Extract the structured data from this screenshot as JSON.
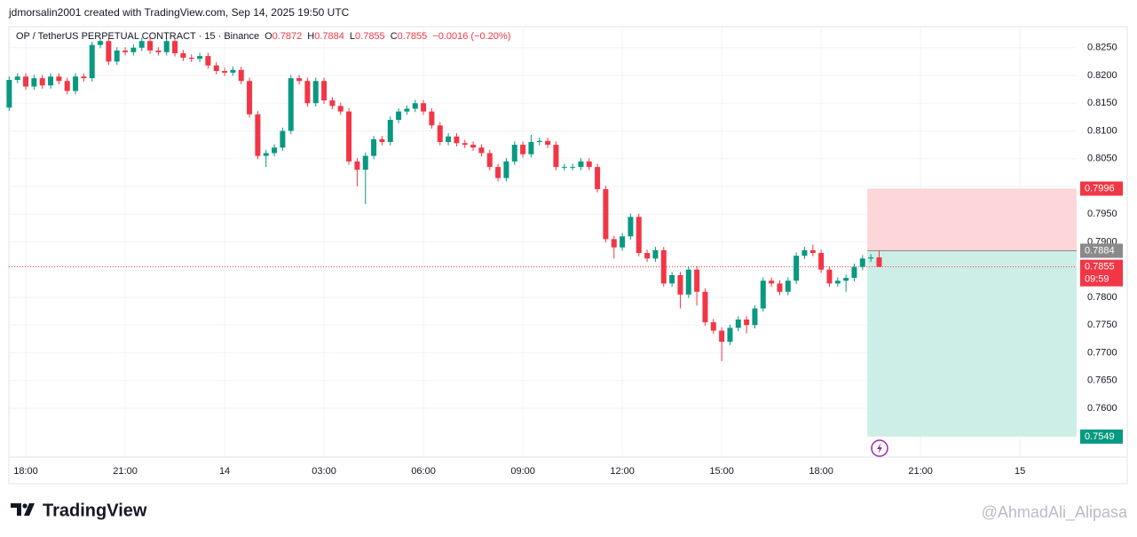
{
  "attribution": "jdmorsalin2001 created with TradingView.com, Sep 14, 2025 19:50 UTC",
  "brand": "TradingView",
  "watermark": "@AhmadAli_Alipasa",
  "chart_data": {
    "type": "candlestick",
    "title": "OP / TetherUS PERPETUAL CONTRACT · 15 · Binance",
    "ohlc_legend": [
      {
        "key": "O",
        "value": "0.7872"
      },
      {
        "key": "H",
        "value": "0.7884"
      },
      {
        "key": "L",
        "value": "0.7855"
      },
      {
        "key": "C",
        "value": "0.7855"
      }
    ],
    "change": "−0.0016 (−0.20%)",
    "up_color": "#089981",
    "down_color": "#f23645",
    "grid": true,
    "xlim": [
      17.49,
      49.71
    ],
    "ylim": [
      0.7512,
      0.8288
    ],
    "xticks": [
      {
        "value": 18,
        "label": "18:00"
      },
      {
        "value": 21,
        "label": "21:00"
      },
      {
        "value": 24,
        "label": "14"
      },
      {
        "value": 27,
        "label": "03:00"
      },
      {
        "value": 30,
        "label": "06:00"
      },
      {
        "value": 33,
        "label": "09:00"
      },
      {
        "value": 36,
        "label": "12:00"
      },
      {
        "value": 39,
        "label": "15:00"
      },
      {
        "value": 42,
        "label": "18:00"
      },
      {
        "value": 45,
        "label": "21:00"
      },
      {
        "value": 48,
        "label": "15"
      }
    ],
    "yticks": [
      {
        "value": 0.76,
        "label": "0.7600"
      },
      {
        "value": 0.765,
        "label": "0.7650"
      },
      {
        "value": 0.77,
        "label": "0.7700"
      },
      {
        "value": 0.775,
        "label": "0.7750"
      },
      {
        "value": 0.78,
        "label": "0.7800"
      },
      {
        "value": 0.785,
        "label": "0.7850"
      },
      {
        "value": 0.79,
        "label": "0.7900"
      },
      {
        "value": 0.795,
        "label": "0.7950"
      },
      {
        "value": 0.8,
        "label": "0.8000"
      },
      {
        "value": 0.805,
        "label": "0.8050"
      },
      {
        "value": 0.81,
        "label": "0.8100"
      },
      {
        "value": 0.815,
        "label": "0.8150"
      },
      {
        "value": 0.82,
        "label": "0.8200"
      },
      {
        "value": 0.825,
        "label": "0.8250"
      }
    ],
    "x": [
      17.5,
      17.75,
      18,
      18.25,
      18.5,
      18.75,
      19,
      19.25,
      19.5,
      19.75,
      20,
      20.25,
      20.5,
      20.75,
      21,
      21.25,
      21.5,
      21.75,
      22,
      22.25,
      22.5,
      22.75,
      23,
      23.25,
      23.5,
      23.75,
      24,
      24.25,
      24.5,
      24.75,
      25,
      25.25,
      25.5,
      25.75,
      26,
      26.25,
      26.5,
      26.75,
      27,
      27.25,
      27.5,
      27.75,
      28,
      28.25,
      28.5,
      28.75,
      29,
      29.25,
      29.5,
      29.75,
      30,
      30.25,
      30.5,
      30.75,
      31,
      31.25,
      31.5,
      31.75,
      32,
      32.25,
      32.5,
      32.75,
      33,
      33.25,
      33.5,
      33.75,
      34,
      34.25,
      34.5,
      34.75,
      35,
      35.25,
      35.5,
      35.75,
      36,
      36.25,
      36.5,
      36.75,
      37,
      37.25,
      37.5,
      37.75,
      38,
      38.25,
      38.5,
      38.75,
      39,
      39.25,
      39.5,
      39.75,
      40,
      40.25,
      40.5,
      40.75,
      41,
      41.25,
      41.5,
      41.75,
      42,
      42.25,
      42.5,
      42.75,
      43,
      43.25,
      43.5,
      43.75
    ],
    "open": [
      0.8142,
      0.8192,
      0.8198,
      0.818,
      0.8195,
      0.8182,
      0.8198,
      0.819,
      0.8172,
      0.8198,
      0.8195,
      0.8255,
      0.8262,
      0.8225,
      0.8245,
      0.8242,
      0.825,
      0.8262,
      0.8245,
      0.8242,
      0.8262,
      0.824,
      0.8232,
      0.823,
      0.8235,
      0.8218,
      0.8208,
      0.8205,
      0.821,
      0.819,
      0.813,
      0.8055,
      0.806,
      0.807,
      0.81,
      0.8195,
      0.819,
      0.815,
      0.819,
      0.8155,
      0.8145,
      0.8135,
      0.8045,
      0.803,
      0.8055,
      0.8085,
      0.808,
      0.812,
      0.8135,
      0.814,
      0.815,
      0.8135,
      0.811,
      0.808,
      0.809,
      0.8078,
      0.8075,
      0.807,
      0.806,
      0.8035,
      0.8015,
      0.8045,
      0.8075,
      0.8058,
      0.808,
      0.8082,
      0.8075,
      0.8035,
      0.8035,
      0.8035,
      0.8045,
      0.8035,
      0.7995,
      0.7905,
      0.789,
      0.791,
      0.7945,
      0.788,
      0.787,
      0.7885,
      0.7825,
      0.784,
      0.7805,
      0.785,
      0.781,
      0.7755,
      0.774,
      0.772,
      0.7745,
      0.776,
      0.775,
      0.778,
      0.783,
      0.7825,
      0.781,
      0.783,
      0.7875,
      0.7885,
      0.788,
      0.785,
      0.7825,
      0.783,
      0.7835,
      0.7855,
      0.787,
      0.7872
    ],
    "high": [
      0.8198,
      0.8204,
      0.8204,
      0.8201,
      0.8201,
      0.8204,
      0.8204,
      0.8196,
      0.8204,
      0.8204,
      0.8261,
      0.8268,
      0.8268,
      0.8251,
      0.8251,
      0.8256,
      0.8268,
      0.8268,
      0.8251,
      0.8268,
      0.8268,
      0.8246,
      0.8238,
      0.8241,
      0.8241,
      0.8224,
      0.8214,
      0.8216,
      0.8216,
      0.8196,
      0.8136,
      0.8066,
      0.8076,
      0.8106,
      0.8201,
      0.8201,
      0.8196,
      0.8196,
      0.8196,
      0.8161,
      0.8151,
      0.8141,
      0.8051,
      0.8061,
      0.8091,
      0.8091,
      0.8126,
      0.8141,
      0.8146,
      0.8156,
      0.8156,
      0.8141,
      0.8116,
      0.8096,
      0.8096,
      0.8084,
      0.8081,
      0.8076,
      0.8066,
      0.8041,
      0.8051,
      0.8081,
      0.8081,
      0.8093,
      0.8088,
      0.8088,
      0.8081,
      0.8041,
      0.8041,
      0.8051,
      0.8051,
      0.8041,
      0.8001,
      0.7911,
      0.7916,
      0.7951,
      0.7951,
      0.7886,
      0.7891,
      0.7891,
      0.7846,
      0.7846,
      0.7856,
      0.7856,
      0.7816,
      0.7761,
      0.7746,
      0.7751,
      0.7766,
      0.7766,
      0.7786,
      0.7836,
      0.7836,
      0.7831,
      0.7836,
      0.7881,
      0.7891,
      0.7895,
      0.7886,
      0.7856,
      0.7836,
      0.7841,
      0.7861,
      0.7876,
      0.7878,
      0.7884
    ],
    "low": [
      0.8136,
      0.8186,
      0.8174,
      0.8174,
      0.8176,
      0.8176,
      0.8184,
      0.8166,
      0.8166,
      0.8189,
      0.8189,
      0.8249,
      0.8219,
      0.8219,
      0.8236,
      0.8236,
      0.8244,
      0.8239,
      0.8236,
      0.8236,
      0.8234,
      0.8226,
      0.8224,
      0.8224,
      0.8212,
      0.8202,
      0.8199,
      0.8199,
      0.8184,
      0.8124,
      0.8049,
      0.8035,
      0.8054,
      0.8064,
      0.8094,
      0.8184,
      0.8144,
      0.8144,
      0.8149,
      0.8139,
      0.8129,
      0.8039,
      0.8,
      0.7968,
      0.8049,
      0.8074,
      0.8074,
      0.8114,
      0.8129,
      0.8134,
      0.8129,
      0.8104,
      0.8074,
      0.8074,
      0.8072,
      0.8069,
      0.8064,
      0.8054,
      0.8029,
      0.8009,
      0.8009,
      0.8039,
      0.8052,
      0.8052,
      0.8074,
      0.8069,
      0.8029,
      0.8029,
      0.8029,
      0.8029,
      0.8029,
      0.7989,
      0.7899,
      0.787,
      0.7884,
      0.7904,
      0.7874,
      0.7864,
      0.7864,
      0.7819,
      0.7819,
      0.778,
      0.7799,
      0.7785,
      0.7749,
      0.7734,
      0.7685,
      0.7714,
      0.7739,
      0.7735,
      0.7744,
      0.7774,
      0.7819,
      0.7804,
      0.7804,
      0.7824,
      0.7869,
      0.7874,
      0.7844,
      0.7819,
      0.7819,
      0.781,
      0.7829,
      0.7849,
      0.7864,
      0.7855
    ],
    "close": [
      0.8192,
      0.8198,
      0.818,
      0.8195,
      0.8182,
      0.8198,
      0.819,
      0.8172,
      0.8198,
      0.8195,
      0.8255,
      0.8262,
      0.8225,
      0.8245,
      0.8242,
      0.825,
      0.8262,
      0.8245,
      0.8242,
      0.8262,
      0.824,
      0.8232,
      0.823,
      0.8235,
      0.8218,
      0.8208,
      0.8205,
      0.821,
      0.819,
      0.813,
      0.8055,
      0.806,
      0.807,
      0.81,
      0.8195,
      0.819,
      0.815,
      0.819,
      0.8155,
      0.8145,
      0.8135,
      0.8045,
      0.803,
      0.8055,
      0.8085,
      0.808,
      0.812,
      0.8135,
      0.814,
      0.815,
      0.8135,
      0.811,
      0.808,
      0.809,
      0.8078,
      0.8075,
      0.807,
      0.806,
      0.8035,
      0.8015,
      0.8045,
      0.8075,
      0.8058,
      0.808,
      0.8082,
      0.8075,
      0.8035,
      0.8035,
      0.8035,
      0.8045,
      0.8035,
      0.7995,
      0.7905,
      0.789,
      0.791,
      0.7945,
      0.788,
      0.787,
      0.7885,
      0.7825,
      0.784,
      0.7805,
      0.785,
      0.781,
      0.7755,
      0.774,
      0.772,
      0.7745,
      0.776,
      0.775,
      0.778,
      0.783,
      0.7825,
      0.781,
      0.783,
      0.7875,
      0.7885,
      0.788,
      0.785,
      0.7825,
      0.783,
      0.7835,
      0.7855,
      0.787,
      0.7872,
      0.7855
    ],
    "position": {
      "x_start": 43.5,
      "stop": 0.7996,
      "entry": 0.7884,
      "target": 0.7549,
      "stop_color": "#fcd6d9",
      "target_color": "#cdeee6",
      "entry_color": "#8a8a8a"
    },
    "last_price": 0.7855,
    "countdown": "09:59"
  }
}
